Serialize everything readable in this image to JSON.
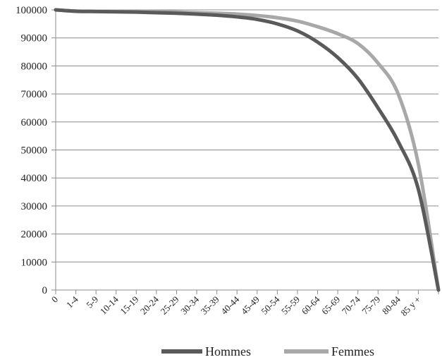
{
  "chart_data": {
    "type": "line",
    "title": "",
    "xlabel": "",
    "ylabel": "",
    "categories": [
      "0",
      "1-4",
      "5-9",
      "10-14",
      "15-19",
      "20-24",
      "25-29",
      "30-34",
      "35-39",
      "40-44",
      "45-49",
      "50-54",
      "55-59",
      "60-64",
      "65-69",
      "70-74",
      "75-79",
      "80-84",
      "85 y +",
      ""
    ],
    "ylim": [
      0,
      100000
    ],
    "y_ticks": [
      0,
      10000,
      20000,
      30000,
      40000,
      50000,
      60000,
      70000,
      80000,
      90000,
      100000
    ],
    "y_tick_labels": [
      "0",
      "10000",
      "20000",
      "30000",
      "40000",
      "50000",
      "60000",
      "70000",
      "80000",
      "90000",
      "100000"
    ],
    "grid": true,
    "legend_position": "bottom",
    "series": [
      {
        "name": "Hommes",
        "color": "#5a5a5a",
        "values": [
          100000,
          99500,
          99400,
          99300,
          99200,
          99000,
          98800,
          98500,
          98100,
          97500,
          96600,
          95000,
          92500,
          88500,
          83000,
          75500,
          65000,
          53000,
          36000,
          0
        ]
      },
      {
        "name": "Femmes",
        "color": "#a8a8a8",
        "values": [
          100000,
          99600,
          99500,
          99450,
          99400,
          99300,
          99200,
          99000,
          98800,
          98500,
          98000,
          97200,
          96000,
          94000,
          91500,
          88000,
          81000,
          70000,
          45000,
          0
        ]
      }
    ]
  }
}
